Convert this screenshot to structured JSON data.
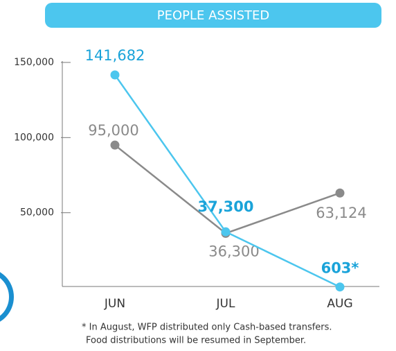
{
  "chart_data": {
    "type": "line",
    "title": "PEOPLE ASSISTED",
    "categories": [
      "JUN",
      "JUL",
      "AUG"
    ],
    "series": [
      {
        "color": "#4cc6ee",
        "values": [
          141682,
          37300,
          603
        ],
        "value_labels": [
          "141,682",
          "37,300",
          "603*"
        ]
      },
      {
        "color": "#8a8a8a",
        "values": [
          95000,
          36300,
          63124
        ],
        "value_labels": [
          "95,000",
          "36,300",
          "63,124"
        ]
      }
    ],
    "ylim": [
      0,
      150000
    ],
    "yticks": [
      {
        "value": 50000,
        "label": "50,000"
      },
      {
        "value": 100000,
        "label": "100,000"
      },
      {
        "value": 150000,
        "label": "150,000"
      }
    ],
    "annotations": [
      "* In August, WFP distributed only Cash-based transfers.",
      "Food distributions will be resumed in September."
    ]
  }
}
